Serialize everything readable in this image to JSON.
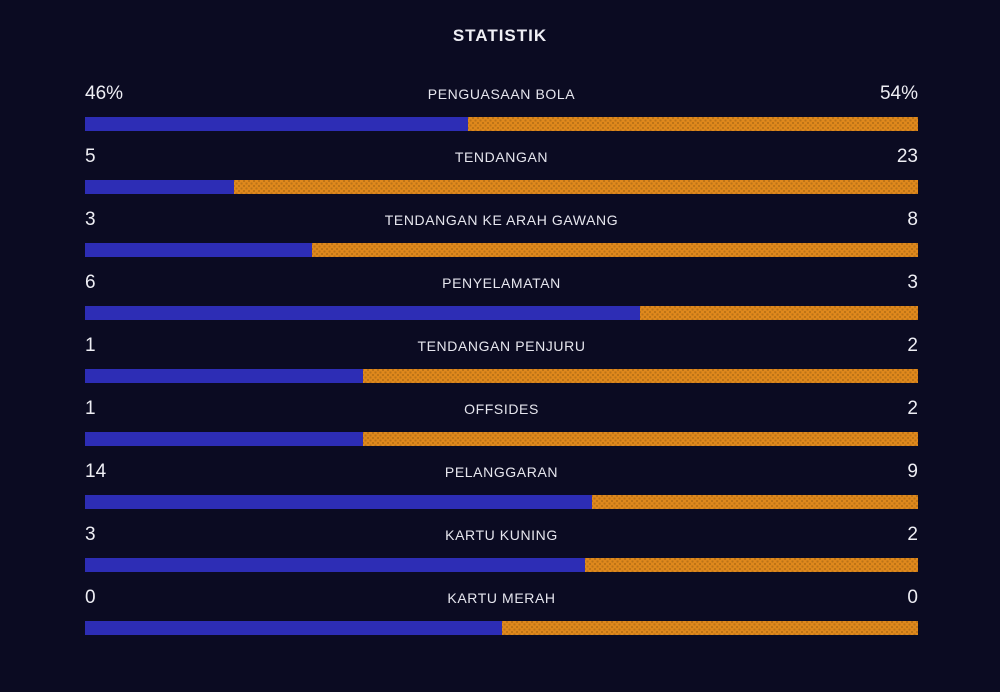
{
  "title": "STATISTIK",
  "theme": {
    "background": "#0b0b22",
    "home_color": "#2d2db5",
    "away_color": "#e0891c",
    "text_color": "#eeeef4"
  },
  "stats": {
    "rows": [
      {
        "label": "PENGUASAAN BOLA",
        "home": "46%",
        "away": "54%"
      },
      {
        "label": "TENDANGAN",
        "home": "5",
        "away": "23"
      },
      {
        "label": "TENDANGAN KE ARAH GAWANG",
        "home": "3",
        "away": "8"
      },
      {
        "label": "PENYELAMATAN",
        "home": "6",
        "away": "3"
      },
      {
        "label": "TENDANGAN PENJURU",
        "home": "1",
        "away": "2"
      },
      {
        "label": "OFFSIDES",
        "home": "1",
        "away": "2"
      },
      {
        "label": "PELANGGARAN",
        "home": "14",
        "away": "9"
      },
      {
        "label": "KARTU KUNING",
        "home": "3",
        "away": "2"
      },
      {
        "label": "KARTU MERAH",
        "home": "0",
        "away": "0"
      }
    ]
  },
  "chart_data": {
    "type": "bar",
    "orientation": "horizontal-paired",
    "title": "STATISTIK",
    "categories": [
      "PENGUASAAN BOLA",
      "TENDANGAN",
      "TENDANGAN KE ARAH GAWANG",
      "PENYELAMATAN",
      "TENDANGAN PENJURU",
      "OFFSIDES",
      "PELANGGARAN",
      "KARTU KUNING",
      "KARTU MERAH"
    ],
    "series": [
      {
        "name": "home",
        "color": "#2d2db5",
        "values": [
          46,
          5,
          3,
          6,
          1,
          1,
          14,
          3,
          0
        ]
      },
      {
        "name": "away",
        "color": "#e0891c",
        "values": [
          54,
          23,
          8,
          3,
          2,
          2,
          9,
          2,
          0
        ]
      }
    ],
    "bar_rule": "left segment width = home/(home+away), 50% when both are 0",
    "legend": "none",
    "grid": false
  }
}
